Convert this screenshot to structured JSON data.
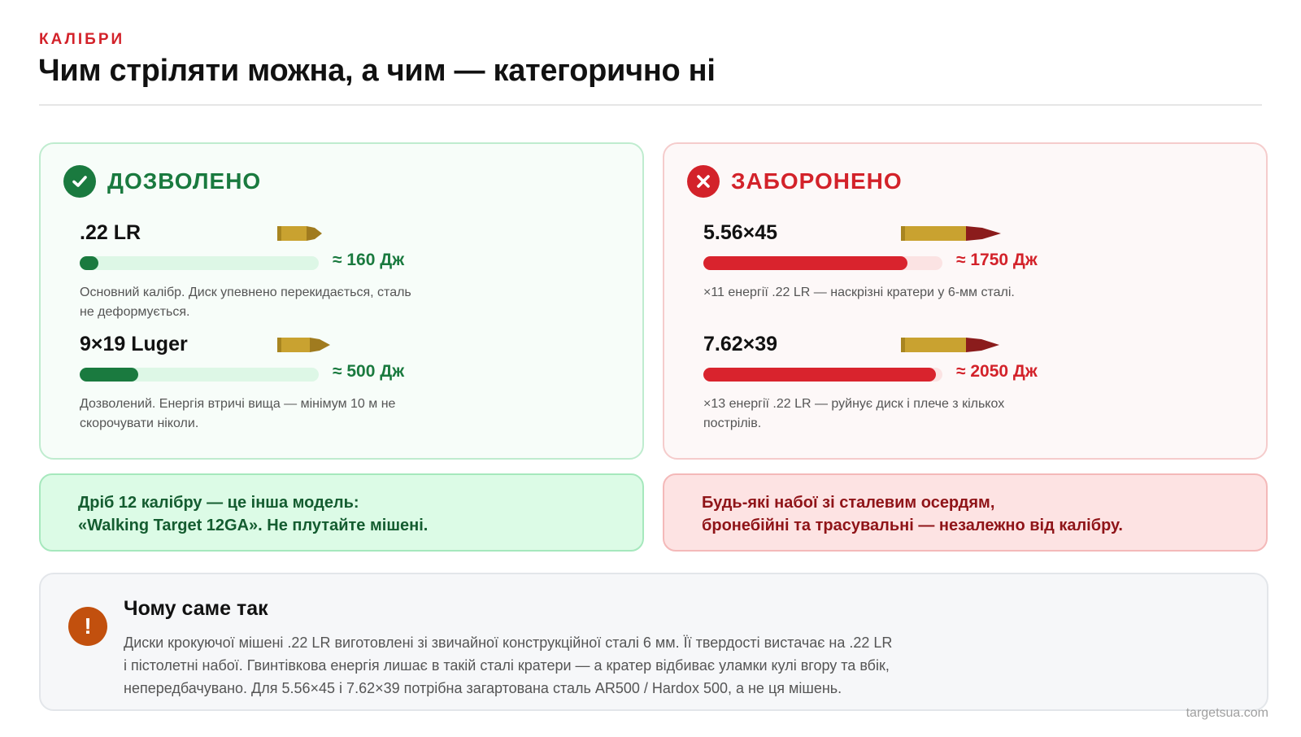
{
  "header": {
    "eyebrow": "КАЛІБРИ",
    "title": "Чим стріляти можна, а чим — категорично ні"
  },
  "colors": {
    "allowed_accent": "#1a7a3f",
    "forbidden_accent": "#d3222a",
    "bullet_case": "#c9a230",
    "allowed_tip": "#a07b1f",
    "forbidden_tip": "#8b1c1c"
  },
  "chart_data": [
    {
      "type": "bar",
      "title": "ДОЗВОЛЕНО",
      "max_value": 2050,
      "categories": [
        ".22 LR",
        "9×19 Luger"
      ],
      "values": [
        160,
        500
      ],
      "value_labels": [
        "≈ 160 Дж",
        "≈ 500 Дж"
      ],
      "descriptions": [
        [
          "Основний калібр. Диск упевнено перекидається, сталь",
          "не деформується."
        ],
        [
          "Дозволений. Енергія втричі вища — мінімум 10 м не",
          "скорочувати ніколи."
        ]
      ],
      "icons": [
        "check-circle-icon",
        "bullet-icon"
      ]
    },
    {
      "type": "bar",
      "title": "ЗАБОРОНЕНО",
      "max_value": 2050,
      "categories": [
        "5.56×45",
        "7.62×39"
      ],
      "values": [
        1750,
        2050
      ],
      "value_labels": [
        "≈ 1750 Дж",
        "≈ 2050 Дж"
      ],
      "descriptions": [
        [
          "×11 енергії .22 LR — наскрізні кратери у 6-мм сталі."
        ],
        [
          "×13 енергії .22 LR — руйнує диск і плече з кількох",
          "пострілів."
        ]
      ],
      "icons": [
        "x-circle-icon",
        "bullet-icon"
      ]
    }
  ],
  "notes": {
    "allowed": [
      "Дріб 12 калібру — це інша модель:",
      "«Walking Target 12GA». Не плутайте мішені."
    ],
    "forbidden": [
      "Будь-які набої зі сталевим осердям,",
      "бронебійні та трасувальні — незалежно від калібру."
    ]
  },
  "why": {
    "icon": "exclamation-circle-icon",
    "icon_glyph": "!",
    "title": "Чому саме так",
    "lines": [
      "Диски крокуючої мішені .22 LR виготовлені зі звичайної конструкційної сталі 6 мм. Її твердості вистачає на .22 LR",
      "і пістолетні набої. Гвинтівкова енергія лишає в такій сталі кратери — а кратер відбиває уламки кулі вгору та вбік,",
      "непередбачувано. Для 5.56×45 і 7.62×39 потрібна загартована сталь AR500 / Hardox 500, а не ця мішень."
    ]
  },
  "footer": {
    "site": "targetsua.com"
  }
}
